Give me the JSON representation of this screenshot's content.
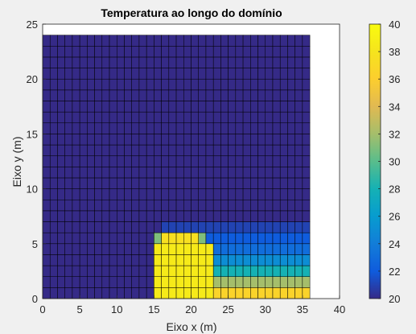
{
  "chart_data": {
    "type": "heatmap",
    "title": "Temperatura ao longo do domínio",
    "xlabel": "Eixo x (m)",
    "ylabel": "Eixo y (m)",
    "xlim": [
      0,
      40
    ],
    "ylim": [
      0,
      25
    ],
    "xticks": [
      "0",
      "5",
      "10",
      "15",
      "20",
      "25",
      "30",
      "35",
      "40"
    ],
    "yticks": [
      "0",
      "5",
      "10",
      "15",
      "20",
      "25"
    ],
    "grid": {
      "x_range": [
        0,
        36
      ],
      "y_range": [
        0,
        24
      ],
      "nx": 36,
      "ny": 24,
      "cell_size": 1
    },
    "base_value": 20,
    "regions": [
      {
        "x": [
          15,
          23
        ],
        "y": [
          0,
          5
        ],
        "value": 38.5
      },
      {
        "x": [
          16,
          21
        ],
        "y": [
          5,
          6
        ],
        "value": 37.5
      },
      {
        "x": [
          15,
          16
        ],
        "y": [
          5,
          6
        ],
        "value": 31
      },
      {
        "x": [
          21,
          22
        ],
        "y": [
          5,
          6
        ],
        "value": 31
      },
      {
        "x": [
          23,
          36
        ],
        "y": [
          0,
          1
        ],
        "value": 36.5
      },
      {
        "x": [
          23,
          36
        ],
        "y": [
          1,
          2
        ],
        "value": 32
      },
      {
        "x": [
          23,
          36
        ],
        "y": [
          2,
          3
        ],
        "value": 28
      },
      {
        "x": [
          23,
          36
        ],
        "y": [
          3,
          4
        ],
        "value": 25
      },
      {
        "x": [
          23,
          36
        ],
        "y": [
          4,
          5
        ],
        "value": 23
      },
      {
        "x": [
          22,
          36
        ],
        "y": [
          5,
          6
        ],
        "value": 22
      },
      {
        "x": [
          16,
          36
        ],
        "y": [
          6,
          7
        ],
        "value": 21
      }
    ],
    "colorbar": {
      "min": 20,
      "max": 40,
      "ticks": [
        "20",
        "22",
        "24",
        "26",
        "28",
        "30",
        "32",
        "34",
        "36",
        "38",
        "40"
      ],
      "position": "right"
    },
    "colors": {
      "figure_bg": "#f0f0f0",
      "axes_bg": "#ffffff",
      "cell_edge": "#000000",
      "colormap": "parula"
    }
  }
}
